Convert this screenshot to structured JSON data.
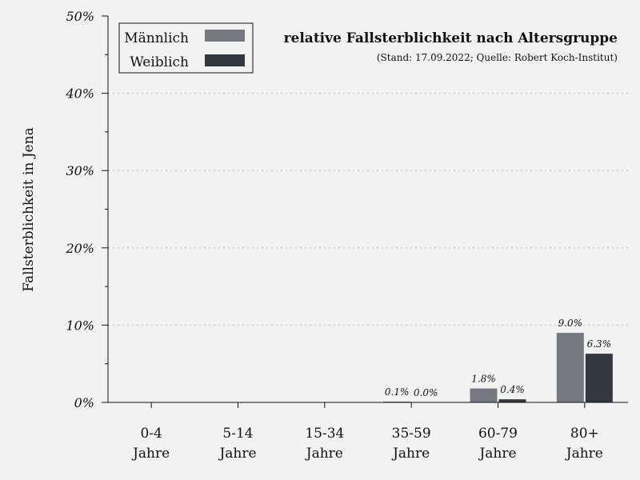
{
  "chart_data": {
    "type": "bar",
    "title": "relative Fallsterblichkeit nach Altersgruppe",
    "subtitle": "(Stand: 17.09.2022; Quelle: Robert Koch-Institut)",
    "ylabel": "Fallsterblichkeit in Jena",
    "xlabel": "",
    "ylim": [
      0,
      50
    ],
    "yticks": [
      "0%",
      "10%",
      "20%",
      "30%",
      "40%",
      "50%"
    ],
    "ytick_values": [
      0,
      10,
      20,
      30,
      40,
      50
    ],
    "categories": [
      [
        "0-4",
        "Jahre"
      ],
      [
        "5-14",
        "Jahre"
      ],
      [
        "15-34",
        "Jahre"
      ],
      [
        "35-59",
        "Jahre"
      ],
      [
        "60-79",
        "Jahre"
      ],
      [
        "80+",
        "Jahre"
      ]
    ],
    "series": [
      {
        "name": "Männlich",
        "color": "#76797f",
        "values": [
          0,
          0,
          0,
          0.1,
          1.8,
          9.0
        ],
        "labels": [
          null,
          null,
          null,
          "0.1%",
          "1.8%",
          "9.0%"
        ]
      },
      {
        "name": "Weiblich",
        "color": "#33383f",
        "values": [
          0,
          0,
          0,
          0.0,
          0.4,
          6.3
        ],
        "labels": [
          null,
          null,
          null,
          "0.0%",
          "0.4%",
          "6.3%"
        ]
      }
    ],
    "grid": true,
    "legend_position": "top-left"
  }
}
